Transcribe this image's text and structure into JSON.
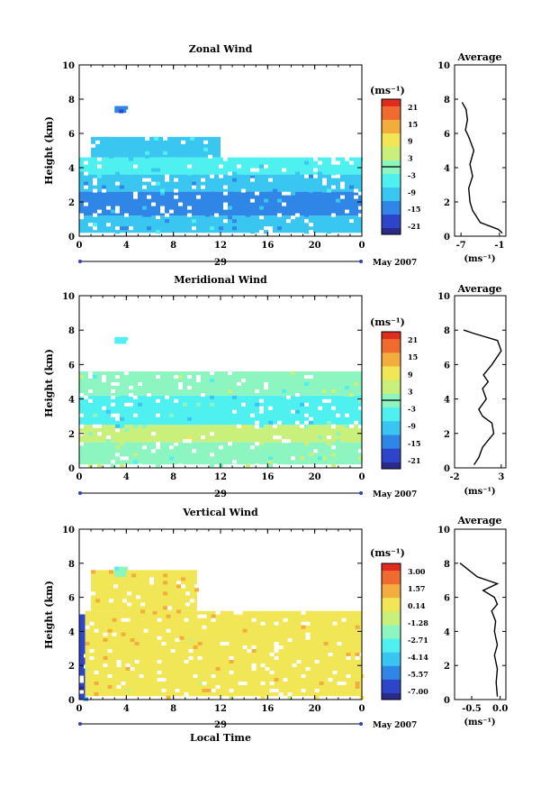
{
  "figure": {
    "date_label": "May 2007",
    "day_label": "29",
    "x_title": "Local Time"
  },
  "legend_unit": "(ms⁻¹)",
  "colorbar_stops": [
    "#2a2a8a",
    "#2f45c9",
    "#2f86e6",
    "#39c6f0",
    "#4ff0f0",
    "#8cf5c0",
    "#c9f07a",
    "#f0e656",
    "#f3ad3d",
    "#ef6b2f",
    "#e02b1f"
  ],
  "panels": [
    {
      "title": "Zonal Wind",
      "ylabel": "Height (km)",
      "x_ticks": [
        "0",
        "4",
        "8",
        "12",
        "16",
        "20",
        "0"
      ],
      "y_ticks": [
        "0",
        "2",
        "4",
        "6",
        "8",
        "10"
      ],
      "colorbar_ticks": [
        "21",
        "15",
        "9",
        "3",
        "-3",
        "-9",
        "-15",
        "-21"
      ],
      "average": {
        "title": "Average",
        "xlabel": "(ms⁻¹)",
        "x_ticks": [
          "-7",
          "-1"
        ],
        "y_ticks": [
          "0",
          "2",
          "4",
          "6",
          "8",
          "10"
        ]
      }
    },
    {
      "title": "Meridional Wind",
      "ylabel": "Height (km)",
      "x_ticks": [
        "0",
        "4",
        "8",
        "12",
        "16",
        "20",
        "0"
      ],
      "y_ticks": [
        "0",
        "2",
        "4",
        "6",
        "8",
        "10"
      ],
      "colorbar_ticks": [
        "21",
        "15",
        "9",
        "3",
        "-3",
        "-9",
        "-15",
        "-21"
      ],
      "average": {
        "title": "Average",
        "xlabel": "(ms⁻¹)",
        "x_ticks": [
          "-2",
          "3"
        ],
        "y_ticks": [
          "0",
          "2",
          "4",
          "6",
          "8",
          "10"
        ]
      }
    },
    {
      "title": "Vertical Wind",
      "ylabel": "Height (km)",
      "x_ticks": [
        "0",
        "4",
        "8",
        "12",
        "16",
        "20",
        "0"
      ],
      "y_ticks": [
        "0",
        "2",
        "4",
        "6",
        "8",
        "10"
      ],
      "colorbar_ticks": [
        "3.00",
        "1.57",
        "0.14",
        "-1.28",
        "-2.71",
        "-4.14",
        "-5.57",
        "-7.00"
      ],
      "average": {
        "title": "Average",
        "xlabel": "(ms⁻¹)",
        "x_ticks": [
          "-0.5",
          "0.0"
        ],
        "y_ticks": [
          "0",
          "2",
          "4",
          "6",
          "8",
          "10"
        ]
      }
    }
  ],
  "chart_data": [
    {
      "type": "heatmap",
      "title": "Zonal Wind",
      "ylabel": "Height (km)",
      "xlabel": "",
      "xlim": [
        0,
        24
      ],
      "ylim": [
        0,
        10
      ],
      "clim": [
        -21,
        21
      ],
      "regions": [
        {
          "x": [
            0,
            24
          ],
          "y": [
            0.2,
            1.2
          ],
          "value": -9
        },
        {
          "x": [
            0,
            24
          ],
          "y": [
            1.2,
            2.6
          ],
          "value": -11
        },
        {
          "x": [
            0,
            24
          ],
          "y": [
            2.6,
            3.6
          ],
          "value": -9
        },
        {
          "x": [
            0,
            24
          ],
          "y": [
            3.6,
            4.6
          ],
          "value": -6
        },
        {
          "x": [
            1,
            12
          ],
          "y": [
            4.6,
            5.8
          ],
          "value": -7
        },
        {
          "x": [
            3,
            4
          ],
          "y": [
            7.2,
            7.6
          ],
          "value": -12
        }
      ]
    },
    {
      "type": "line",
      "title": "Average",
      "xlabel": "(ms⁻¹)",
      "xlim": [
        -8,
        0
      ],
      "ylim": [
        0,
        10
      ],
      "x": [
        -0.6,
        -1.2,
        -4.0,
        -5.2,
        -5.6,
        -5.8,
        -5.2,
        -5.6,
        -5.0,
        -5.8,
        -6.3,
        -6.0,
        -6.2,
        -6.8
      ],
      "y": [
        0.2,
        0.4,
        0.8,
        1.5,
        2.0,
        2.8,
        3.5,
        4.2,
        5.0,
        5.8,
        6.2,
        6.8,
        7.4,
        7.8
      ]
    },
    {
      "type": "heatmap",
      "title": "Meridional Wind",
      "ylabel": "Height (km)",
      "xlabel": "",
      "xlim": [
        0,
        24
      ],
      "ylim": [
        0,
        10
      ],
      "clim": [
        -21,
        21
      ],
      "regions": [
        {
          "x": [
            0,
            24
          ],
          "y": [
            0.2,
            1.5
          ],
          "value": 1
        },
        {
          "x": [
            0,
            24
          ],
          "y": [
            1.5,
            2.5
          ],
          "value": 3
        },
        {
          "x": [
            0,
            24
          ],
          "y": [
            2.5,
            4.2
          ],
          "value": -4
        },
        {
          "x": [
            0,
            24
          ],
          "y": [
            4.2,
            5.6
          ],
          "value": 1
        },
        {
          "x": [
            3,
            4
          ],
          "y": [
            7.2,
            7.6
          ],
          "value": -3
        }
      ]
    },
    {
      "type": "line",
      "title": "Average",
      "xlabel": "(ms⁻¹)",
      "xlim": [
        -2,
        3.5
      ],
      "ylim": [
        0,
        10
      ],
      "x": [
        0.1,
        0.6,
        1.0,
        2.2,
        2.0,
        1.0,
        0.6,
        1.4,
        1.0,
        1.6,
        1.1,
        2.0,
        3.0,
        2.6,
        0.1,
        -1.0
      ],
      "y": [
        0.2,
        0.6,
        1.2,
        2.0,
        2.6,
        3.0,
        3.4,
        4.0,
        4.6,
        5.0,
        5.4,
        6.0,
        6.8,
        7.4,
        7.8,
        8.0
      ]
    },
    {
      "type": "heatmap",
      "title": "Vertical Wind",
      "ylabel": "Height (km)",
      "xlabel": "Local Time",
      "xlim": [
        0,
        24
      ],
      "ylim": [
        0,
        10
      ],
      "clim": [
        -7.0,
        3.0
      ],
      "regions": [
        {
          "x": [
            0,
            0.5
          ],
          "y": [
            0,
            5
          ],
          "value": -6
        },
        {
          "x": [
            0.5,
            24
          ],
          "y": [
            0.2,
            3.6
          ],
          "value": 0.2
        },
        {
          "x": [
            0.5,
            24
          ],
          "y": [
            3.6,
            5.2
          ],
          "value": 0.3
        },
        {
          "x": [
            1,
            10
          ],
          "y": [
            5.2,
            7.6
          ],
          "value": 0.4
        },
        {
          "x": [
            3,
            4
          ],
          "y": [
            7.2,
            7.8
          ],
          "value": -1.8
        }
      ]
    },
    {
      "type": "line",
      "title": "Average",
      "xlabel": "(ms⁻¹)",
      "xlim": [
        -0.8,
        0.1
      ],
      "ylim": [
        0,
        10
      ],
      "x": [
        -0.05,
        -0.07,
        -0.05,
        -0.1,
        -0.05,
        -0.1,
        -0.08,
        -0.15,
        -0.05,
        -0.1,
        -0.3,
        -0.05,
        -0.4,
        -0.55,
        -0.7
      ],
      "y": [
        0.2,
        1.0,
        1.8,
        2.6,
        3.2,
        4.0,
        4.6,
        5.2,
        5.6,
        6.0,
        6.4,
        6.8,
        7.2,
        7.6,
        8.0
      ]
    }
  ]
}
